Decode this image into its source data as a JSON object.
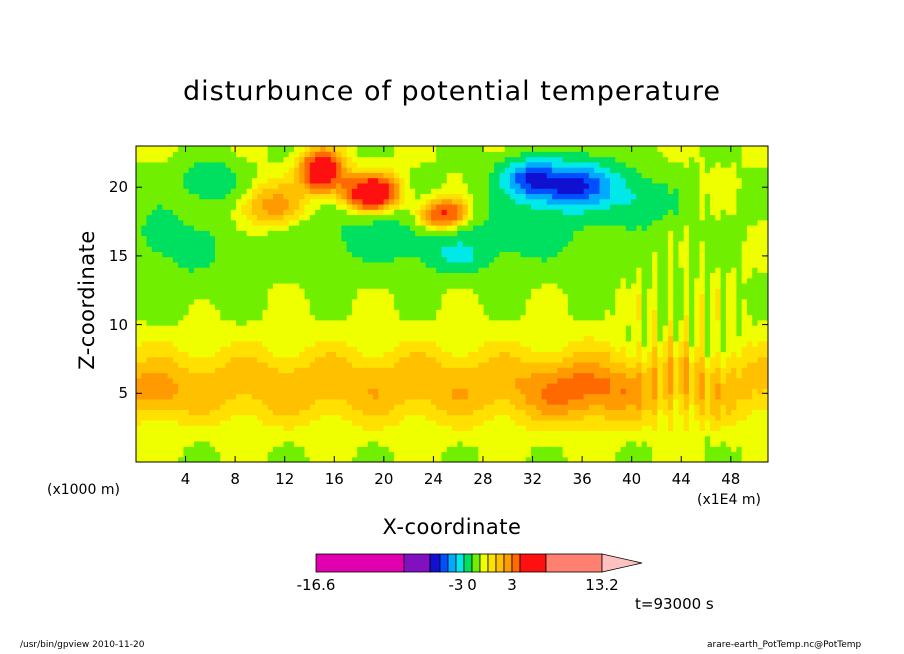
{
  "chart_data": {
    "type": "heatmap",
    "title": "disturbunce of potential temperature",
    "xlabel": "X-coordinate",
    "ylabel": "Z-coordinate",
    "x_unit_left": "(x1000 m)",
    "x_unit_right": "(x1E4 m)",
    "xlim": [
      0,
      51
    ],
    "ylim": [
      0,
      23
    ],
    "x_ticks": [
      4,
      8,
      12,
      16,
      20,
      24,
      28,
      32,
      36,
      40,
      44,
      48
    ],
    "y_ticks": [
      5,
      10,
      15,
      20
    ],
    "colorbar": {
      "min": -16.6,
      "max": 13.2,
      "labels": [
        "-16.6",
        "-3",
        "0",
        "3",
        "13.2"
      ],
      "bands": [
        {
          "lo": -16.6,
          "hi": -10,
          "color": "#e000b0"
        },
        {
          "lo": -10,
          "hi": -8,
          "color": "#8010c0"
        },
        {
          "lo": -8,
          "hi": -6,
          "color": "#1010d0"
        },
        {
          "lo": -6,
          "hi": -4.5,
          "color": "#0050ff"
        },
        {
          "lo": -4.5,
          "hi": -3,
          "color": "#00aaff"
        },
        {
          "lo": -3,
          "hi": -1.5,
          "color": "#00e8e8"
        },
        {
          "lo": -1.5,
          "hi": 0,
          "color": "#00e060"
        },
        {
          "lo": 0,
          "hi": 1,
          "color": "#70f000"
        },
        {
          "lo": 1,
          "hi": 1.5,
          "color": "#f0ff00"
        },
        {
          "lo": 1.5,
          "hi": 2,
          "color": "#ffe000"
        },
        {
          "lo": 2,
          "hi": 2.5,
          "color": "#ffc000"
        },
        {
          "lo": 2.5,
          "hi": 3,
          "color": "#ff9a00"
        },
        {
          "lo": 3,
          "hi": 4,
          "color": "#ff6a00"
        },
        {
          "lo": 4,
          "hi": 6,
          "color": "#ff1010"
        },
        {
          "lo": 6,
          "hi": 13.2,
          "color": "#ff8070"
        }
      ],
      "overflow_color": "#ffc0c0"
    },
    "grid": false,
    "time_label": "t=93000 s"
  },
  "footer": {
    "left": "/usr/bin/gpview   2010-11-20",
    "right": "arare-earth_PotTemp.nc@PotTemp"
  }
}
